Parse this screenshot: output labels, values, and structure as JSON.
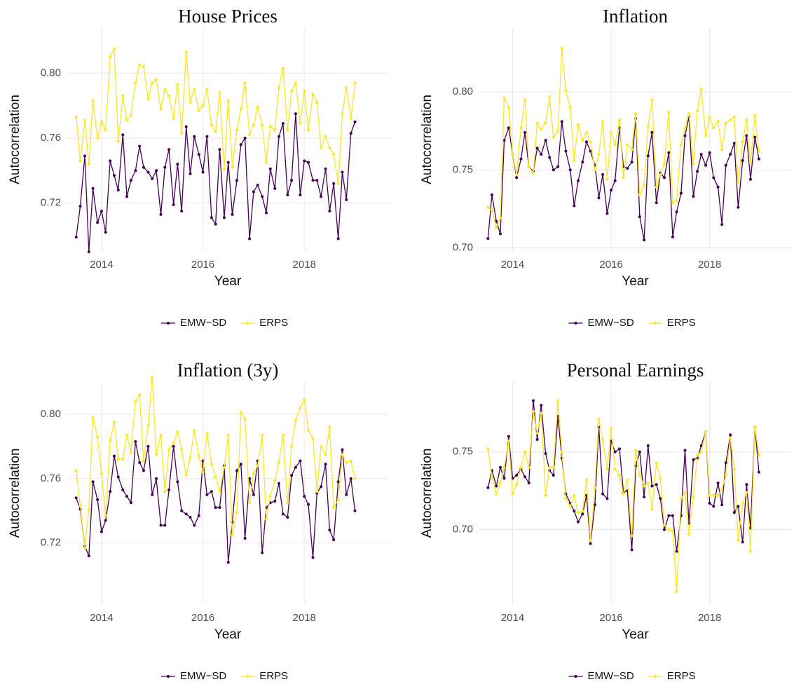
{
  "chart_data": [
    {
      "type": "line",
      "title": "House Prices",
      "x_label": "Year",
      "y_label": "Autocorrelation",
      "grid": true,
      "legend": "bottom",
      "x": [
        2013.5,
        2013.58,
        2013.67,
        2013.75,
        2013.83,
        2013.92,
        2014,
        2014.08,
        2014.17,
        2014.25,
        2014.33,
        2014.42,
        2014.5,
        2014.58,
        2014.67,
        2014.75,
        2014.83,
        2014.92,
        2015,
        2015.08,
        2015.17,
        2015.25,
        2015.33,
        2015.42,
        2015.5,
        2015.58,
        2015.67,
        2015.75,
        2015.83,
        2015.92,
        2016,
        2016.08,
        2016.17,
        2016.25,
        2016.33,
        2016.42,
        2016.5,
        2016.58,
        2016.67,
        2016.75,
        2016.83,
        2016.92,
        2017,
        2017.08,
        2017.17,
        2017.25,
        2017.33,
        2017.42,
        2017.5,
        2017.58,
        2017.67,
        2017.75,
        2017.83,
        2017.92,
        2018,
        2018.08,
        2018.17,
        2018.25,
        2018.33,
        2018.42,
        2018.5,
        2018.58,
        2018.67,
        2018.75,
        2018.83,
        2018.92,
        2019
      ],
      "xlim": [
        2013.31,
        2019.67
      ],
      "xticks": [
        2014,
        2016,
        2018
      ],
      "ylim": [
        0.6905,
        0.8278
      ],
      "yticks": [
        0.72,
        0.76,
        {
          "value": 0.8,
          "label": "0.80"
        }
      ],
      "series": [
        {
          "name": "EMW−SD",
          "color": "#440154",
          "values": [
            0.699,
            0.718,
            0.749,
            0.69,
            0.729,
            0.708,
            0.715,
            0.702,
            0.746,
            0.737,
            0.728,
            0.762,
            0.724,
            0.734,
            0.74,
            0.755,
            0.742,
            0.739,
            0.735,
            0.74,
            0.713,
            0.742,
            0.753,
            0.719,
            0.744,
            0.715,
            0.767,
            0.738,
            0.761,
            0.75,
            0.739,
            0.761,
            0.711,
            0.707,
            0.753,
            0.711,
            0.745,
            0.713,
            0.734,
            0.756,
            0.76,
            0.698,
            0.727,
            0.731,
            0.724,
            0.714,
            0.741,
            0.729,
            0.761,
            0.769,
            0.725,
            0.734,
            0.775,
            0.725,
            0.746,
            0.745,
            0.734,
            0.734,
            0.724,
            0.741,
            0.715,
            0.732,
            0.698,
            0.739,
            0.722,
            0.763,
            0.77
          ]
        },
        {
          "name": "ERPS",
          "color": "#FDE725",
          "values": [
            0.773,
            0.746,
            0.771,
            0.744,
            0.783,
            0.76,
            0.77,
            0.765,
            0.81,
            0.815,
            0.758,
            0.786,
            0.771,
            0.774,
            0.794,
            0.805,
            0.804,
            0.784,
            0.794,
            0.796,
            0.778,
            0.79,
            0.786,
            0.772,
            0.793,
            0.763,
            0.813,
            0.782,
            0.79,
            0.777,
            0.78,
            0.79,
            0.768,
            0.764,
            0.788,
            0.741,
            0.783,
            0.742,
            0.765,
            0.778,
            0.794,
            0.762,
            0.768,
            0.779,
            0.768,
            0.745,
            0.767,
            0.765,
            0.791,
            0.803,
            0.765,
            0.789,
            0.794,
            0.769,
            0.789,
            0.765,
            0.787,
            0.782,
            0.754,
            0.761,
            0.754,
            0.75,
            0.732,
            0.775,
            0.791,
            0.772,
            0.794
          ]
        }
      ]
    },
    {
      "type": "line",
      "title": "Inflation",
      "x_label": "Year",
      "y_label": "Autocorrelation",
      "grid": true,
      "legend": "bottom",
      "x": [
        2013.5,
        2013.58,
        2013.67,
        2013.75,
        2013.83,
        2013.92,
        2014,
        2014.08,
        2014.17,
        2014.25,
        2014.33,
        2014.42,
        2014.5,
        2014.58,
        2014.67,
        2014.75,
        2014.83,
        2014.92,
        2015,
        2015.08,
        2015.17,
        2015.25,
        2015.33,
        2015.42,
        2015.5,
        2015.58,
        2015.67,
        2015.75,
        2015.83,
        2015.92,
        2016,
        2016.08,
        2016.17,
        2016.25,
        2016.33,
        2016.42,
        2016.5,
        2016.58,
        2016.67,
        2016.75,
        2016.83,
        2016.92,
        2017,
        2017.08,
        2017.17,
        2017.25,
        2017.33,
        2017.42,
        2017.5,
        2017.58,
        2017.67,
        2017.75,
        2017.83,
        2017.92,
        2018,
        2018.08,
        2018.17,
        2018.25,
        2018.33,
        2018.42,
        2018.5,
        2018.58,
        2018.67,
        2018.75,
        2018.83,
        2018.92,
        2019
      ],
      "xlim": [
        2013.31,
        2019.67
      ],
      "xticks": [
        2014,
        2016,
        2018
      ],
      "ylim": [
        0.698,
        0.841
      ],
      "yticks": [
        {
          "value": 0.7,
          "label": "0.70"
        },
        0.75,
        {
          "value": 0.8,
          "label": "0.80"
        }
      ],
      "series": [
        {
          "name": "EMW−SD",
          "color": "#440154",
          "values": [
            0.706,
            0.734,
            0.717,
            0.709,
            0.769,
            0.777,
            0.76,
            0.745,
            0.757,
            0.774,
            0.752,
            0.749,
            0.764,
            0.76,
            0.769,
            0.758,
            0.75,
            0.752,
            0.781,
            0.762,
            0.75,
            0.727,
            0.743,
            0.755,
            0.768,
            0.762,
            0.753,
            0.732,
            0.747,
            0.722,
            0.737,
            0.743,
            0.777,
            0.752,
            0.751,
            0.755,
            0.783,
            0.72,
            0.705,
            0.759,
            0.774,
            0.729,
            0.748,
            0.745,
            0.761,
            0.707,
            0.723,
            0.735,
            0.772,
            0.784,
            0.733,
            0.749,
            0.76,
            0.753,
            0.761,
            0.745,
            0.739,
            0.715,
            0.753,
            0.76,
            0.767,
            0.726,
            0.756,
            0.772,
            0.744,
            0.771,
            0.757
          ]
        },
        {
          "name": "ERPS",
          "color": "#FDE725",
          "values": [
            0.726,
            0.724,
            0.713,
            0.719,
            0.796,
            0.79,
            0.76,
            0.747,
            0.777,
            0.795,
            0.752,
            0.748,
            0.78,
            0.776,
            0.78,
            0.797,
            0.771,
            0.775,
            0.828,
            0.801,
            0.79,
            0.756,
            0.779,
            0.769,
            0.774,
            0.768,
            0.75,
            0.76,
            0.781,
            0.744,
            0.774,
            0.766,
            0.782,
            0.745,
            0.766,
            0.763,
            0.786,
            0.734,
            0.74,
            0.778,
            0.795,
            0.739,
            0.747,
            0.754,
            0.787,
            0.729,
            0.73,
            0.766,
            0.777,
            0.786,
            0.754,
            0.788,
            0.802,
            0.772,
            0.784,
            0.777,
            0.781,
            0.763,
            0.78,
            0.782,
            0.784,
            0.742,
            0.768,
            0.782,
            0.755,
            0.785,
            0.762
          ]
        }
      ]
    },
    {
      "type": "line",
      "title": "Inflation (3y)",
      "x_label": "Year",
      "y_label": "Autocorrelation",
      "grid": true,
      "legend": "bottom",
      "x": [
        2013.5,
        2013.58,
        2013.67,
        2013.75,
        2013.83,
        2013.92,
        2014,
        2014.08,
        2014.17,
        2014.25,
        2014.33,
        2014.42,
        2014.5,
        2014.58,
        2014.67,
        2014.75,
        2014.83,
        2014.92,
        2015,
        2015.08,
        2015.17,
        2015.25,
        2015.33,
        2015.42,
        2015.5,
        2015.58,
        2015.67,
        2015.75,
        2015.83,
        2015.92,
        2016,
        2016.08,
        2016.17,
        2016.25,
        2016.33,
        2016.42,
        2016.5,
        2016.58,
        2016.67,
        2016.75,
        2016.83,
        2016.92,
        2017,
        2017.08,
        2017.17,
        2017.25,
        2017.33,
        2017.42,
        2017.5,
        2017.58,
        2017.67,
        2017.75,
        2017.83,
        2017.92,
        2018,
        2018.08,
        2018.17,
        2018.25,
        2018.33,
        2018.42,
        2018.5,
        2018.58,
        2018.67,
        2018.75,
        2018.83,
        2018.92,
        2019
      ],
      "xlim": [
        2013.31,
        2019.67
      ],
      "xticks": [
        2014,
        2016,
        2018
      ],
      "ylim": [
        0.682,
        0.82
      ],
      "yticks": [
        0.72,
        0.76,
        {
          "value": 0.8,
          "label": "0.80"
        }
      ],
      "series": [
        {
          "name": "EMW−SD",
          "color": "#440154",
          "values": [
            0.748,
            0.741,
            0.718,
            0.712,
            0.758,
            0.747,
            0.727,
            0.734,
            0.752,
            0.774,
            0.761,
            0.753,
            0.749,
            0.745,
            0.783,
            0.77,
            0.765,
            0.78,
            0.75,
            0.76,
            0.731,
            0.731,
            0.753,
            0.78,
            0.758,
            0.74,
            0.738,
            0.736,
            0.731,
            0.737,
            0.771,
            0.75,
            0.752,
            0.742,
            0.742,
            0.768,
            0.708,
            0.733,
            0.765,
            0.769,
            0.723,
            0.76,
            0.75,
            0.771,
            0.714,
            0.742,
            0.745,
            0.746,
            0.757,
            0.738,
            0.736,
            0.762,
            0.767,
            0.771,
            0.749,
            0.744,
            0.711,
            0.751,
            0.755,
            0.769,
            0.728,
            0.722,
            0.758,
            0.778,
            0.75,
            0.76,
            0.74
          ]
        },
        {
          "name": "ERPS",
          "color": "#FDE725",
          "values": [
            0.765,
            0.743,
            0.717,
            0.741,
            0.798,
            0.786,
            0.763,
            0.737,
            0.784,
            0.795,
            0.772,
            0.772,
            0.787,
            0.776,
            0.808,
            0.812,
            0.771,
            0.793,
            0.823,
            0.775,
            0.787,
            0.752,
            0.778,
            0.782,
            0.789,
            0.778,
            0.762,
            0.773,
            0.79,
            0.774,
            0.764,
            0.788,
            0.769,
            0.761,
            0.752,
            0.767,
            0.787,
            0.725,
            0.739,
            0.801,
            0.797,
            0.745,
            0.763,
            0.768,
            0.787,
            0.735,
            0.749,
            0.759,
            0.77,
            0.787,
            0.745,
            0.78,
            0.796,
            0.804,
            0.809,
            0.79,
            0.785,
            0.752,
            0.78,
            0.775,
            0.792,
            0.742,
            0.747,
            0.775,
            0.77,
            0.771,
            0.76
          ]
        }
      ]
    },
    {
      "type": "line",
      "title": "Personal Earnings",
      "x_label": "Year",
      "y_label": "Autocorrelation",
      "grid": true,
      "legend": "bottom",
      "x": [
        2013.5,
        2013.58,
        2013.67,
        2013.75,
        2013.83,
        2013.92,
        2014,
        2014.08,
        2014.17,
        2014.25,
        2014.33,
        2014.42,
        2014.5,
        2014.58,
        2014.67,
        2014.75,
        2014.83,
        2014.92,
        2015,
        2015.08,
        2015.17,
        2015.25,
        2015.33,
        2015.42,
        2015.5,
        2015.58,
        2015.67,
        2015.75,
        2015.83,
        2015.92,
        2016,
        2016.08,
        2016.17,
        2016.25,
        2016.33,
        2016.42,
        2016.5,
        2016.58,
        2016.67,
        2016.75,
        2016.83,
        2016.92,
        2017,
        2017.08,
        2017.17,
        2017.25,
        2017.33,
        2017.42,
        2017.5,
        2017.58,
        2017.67,
        2017.75,
        2017.83,
        2017.92,
        2018,
        2018.08,
        2018.17,
        2018.25,
        2018.33,
        2018.42,
        2018.5,
        2018.58,
        2018.67,
        2018.75,
        2018.83,
        2018.92,
        2019
      ],
      "xlim": [
        2013.31,
        2019.67
      ],
      "xticks": [
        2014,
        2016,
        2018
      ],
      "ylim": [
        0.652,
        0.795
      ],
      "yticks": [
        {
          "value": 0.7,
          "label": "0.70"
        },
        0.75
      ],
      "series": [
        {
          "name": "EMW−SD",
          "color": "#440154",
          "values": [
            0.727,
            0.738,
            0.728,
            0.74,
            0.733,
            0.76,
            0.733,
            0.735,
            0.739,
            0.734,
            0.73,
            0.783,
            0.758,
            0.78,
            0.749,
            0.738,
            0.735,
            0.773,
            0.746,
            0.723,
            0.717,
            0.712,
            0.705,
            0.71,
            0.722,
            0.691,
            0.716,
            0.766,
            0.723,
            0.72,
            0.757,
            0.75,
            0.752,
            0.724,
            0.725,
            0.687,
            0.741,
            0.75,
            0.721,
            0.754,
            0.728,
            0.729,
            0.72,
            0.7,
            0.709,
            0.709,
            0.686,
            0.709,
            0.751,
            0.704,
            0.745,
            0.746,
            0.754,
            0.763,
            0.717,
            0.715,
            0.73,
            0.716,
            0.743,
            0.761,
            0.711,
            0.715,
            0.692,
            0.729,
            0.701,
            0.766,
            0.737
          ]
        },
        {
          "name": "ERPS",
          "color": "#FDE725",
          "values": [
            0.752,
            0.734,
            0.723,
            0.73,
            0.74,
            0.757,
            0.723,
            0.729,
            0.74,
            0.75,
            0.74,
            0.776,
            0.762,
            0.775,
            0.722,
            0.74,
            0.74,
            0.783,
            0.75,
            0.72,
            0.715,
            0.722,
            0.711,
            0.712,
            0.732,
            0.693,
            0.727,
            0.771,
            0.758,
            0.739,
            0.765,
            0.739,
            0.735,
            0.723,
            0.732,
            0.696,
            0.751,
            0.735,
            0.728,
            0.73,
            0.713,
            0.743,
            0.733,
            0.703,
            0.7,
            0.699,
            0.66,
            0.72,
            0.724,
            0.697,
            0.721,
            0.748,
            0.75,
            0.763,
            0.722,
            0.722,
            0.722,
            0.726,
            0.735,
            0.759,
            0.739,
            0.693,
            0.717,
            0.724,
            0.686,
            0.766,
            0.748
          ]
        }
      ]
    }
  ]
}
